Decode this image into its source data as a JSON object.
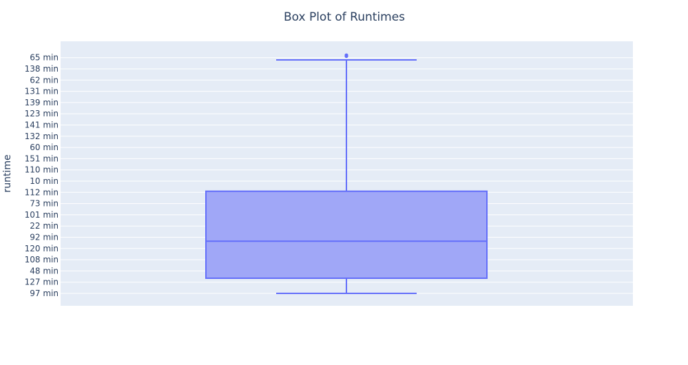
{
  "chart_data": {
    "type": "box",
    "title": "Box Plot of Runtimes",
    "xlabel": "",
    "ylabel": "runtime",
    "y_axis_type": "category",
    "categories_bottom_to_top": [
      "97 min",
      "127 min",
      "48 min",
      "108 min",
      "120 min",
      "92 min",
      "22 min",
      "101 min",
      "73 min",
      "112 min",
      "10 min",
      "110 min",
      "151 min",
      "60 min",
      "132 min",
      "141 min",
      "123 min",
      "139 min",
      "131 min",
      "62 min",
      "138 min",
      "65 min"
    ],
    "box": {
      "lower_fence_index": 0.0,
      "q1_index": 1.35,
      "median_index": 4.65,
      "q3_index": 9.1,
      "upper_fence_index": 20.8,
      "outlier_indices": [
        21.0,
        21.05,
        21.1
      ]
    },
    "grid": true,
    "legend": "none",
    "colors": {
      "plot_bg": "#e5ecf6",
      "grid": "#ffffff",
      "box_line": "#636efa",
      "box_fill": "#a0a7f7",
      "text": "#2a3f5f"
    }
  }
}
